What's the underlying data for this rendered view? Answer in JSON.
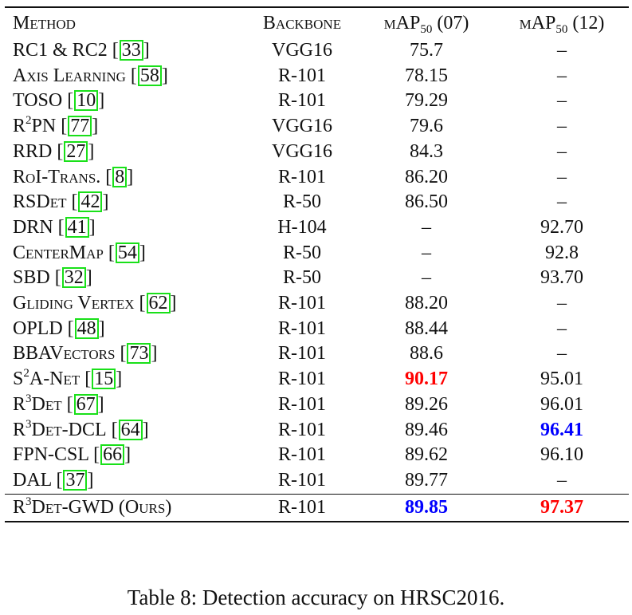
{
  "header": {
    "method": "Method",
    "backbone": "Backbone",
    "map07_prefix": "mAP",
    "map07_sub": "50",
    "map07_suffix": " (07)",
    "map12_prefix": "mAP",
    "map12_sub": "50",
    "map12_suffix": " (12)"
  },
  "rows": [
    {
      "pre": "RC1 & RC2",
      "sup": "",
      "post": "",
      "cite": "33",
      "backbone": "VGG16",
      "map07": "75.7",
      "map12": "–"
    },
    {
      "pre": "Axis Learning",
      "sup": "",
      "post": "",
      "cite": "58",
      "backbone": "R-101",
      "map07": "78.15",
      "map12": "–"
    },
    {
      "pre": "TOSO",
      "sup": "",
      "post": "",
      "cite": "10",
      "backbone": "R-101",
      "map07": "79.29",
      "map12": "–"
    },
    {
      "pre": "R",
      "sup": "2",
      "post": "PN",
      "cite": "77",
      "backbone": "VGG16",
      "map07": "79.6",
      "map12": "–"
    },
    {
      "pre": "RRD",
      "sup": "",
      "post": "",
      "cite": "27",
      "backbone": "VGG16",
      "map07": "84.3",
      "map12": "–"
    },
    {
      "pre": "RoI-Trans.",
      "sup": "",
      "post": "",
      "cite": "8",
      "backbone": "R-101",
      "map07": "86.20",
      "map12": "–"
    },
    {
      "pre": "RSDet",
      "sup": "",
      "post": "",
      "cite": "42",
      "backbone": "R-50",
      "map07": "86.50",
      "map12": "–"
    },
    {
      "pre": "DRN",
      "sup": "",
      "post": "",
      "cite": "41",
      "backbone": "H-104",
      "map07": "–",
      "map12": "92.70"
    },
    {
      "pre": "CenterMap",
      "sup": "",
      "post": "",
      "cite": "54",
      "backbone": "R-50",
      "map07": "–",
      "map12": "92.8"
    },
    {
      "pre": "SBD",
      "sup": "",
      "post": "",
      "cite": "32",
      "backbone": "R-50",
      "map07": "–",
      "map12": "93.70"
    },
    {
      "pre": "Gliding Vertex",
      "sup": "",
      "post": "",
      "cite": "62",
      "backbone": "R-101",
      "map07": "88.20",
      "map12": "–"
    },
    {
      "pre": "OPLD",
      "sup": "",
      "post": "",
      "cite": "48",
      "backbone": "R-101",
      "map07": "88.44",
      "map12": "–"
    },
    {
      "pre": "BBAVectors",
      "sup": "",
      "post": "",
      "cite": "73",
      "backbone": "R-101",
      "map07": "88.6",
      "map12": "–"
    },
    {
      "pre": "S",
      "sup": "2",
      "post": "A-Net",
      "cite": "15",
      "backbone": "R-101",
      "map07": "90.17",
      "map12": "95.01",
      "map07_style": "best-red"
    },
    {
      "pre": "R",
      "sup": "3",
      "post": "Det",
      "cite": "67",
      "backbone": "R-101",
      "map07": "89.26",
      "map12": "96.01"
    },
    {
      "pre": "R",
      "sup": "3",
      "post": "Det-DCL",
      "cite": "64",
      "backbone": "R-101",
      "map07": "89.46",
      "map12": "96.41",
      "map12_style": "best-blue"
    },
    {
      "pre": "FPN-CSL",
      "sup": "",
      "post": "",
      "cite": "66",
      "backbone": "R-101",
      "map07": "89.62",
      "map12": "96.10"
    },
    {
      "pre": "DAL",
      "sup": "",
      "post": "",
      "cite": "37",
      "backbone": "R-101",
      "map07": "89.77",
      "map12": "–"
    }
  ],
  "ours": {
    "pre": "R",
    "sup": "3",
    "post": "Det-GWD (Ours)",
    "cite": "",
    "backbone": "R-101",
    "map07": "89.85",
    "map12": "97.37",
    "map07_style": "best-blue",
    "map12_style": "best-red"
  },
  "caption": "Table 8: Detection accuracy on HRSC2016.",
  "colors": {
    "best_first": "#ff0000",
    "best_second": "#0000ff",
    "citation_box": "#19e019"
  }
}
